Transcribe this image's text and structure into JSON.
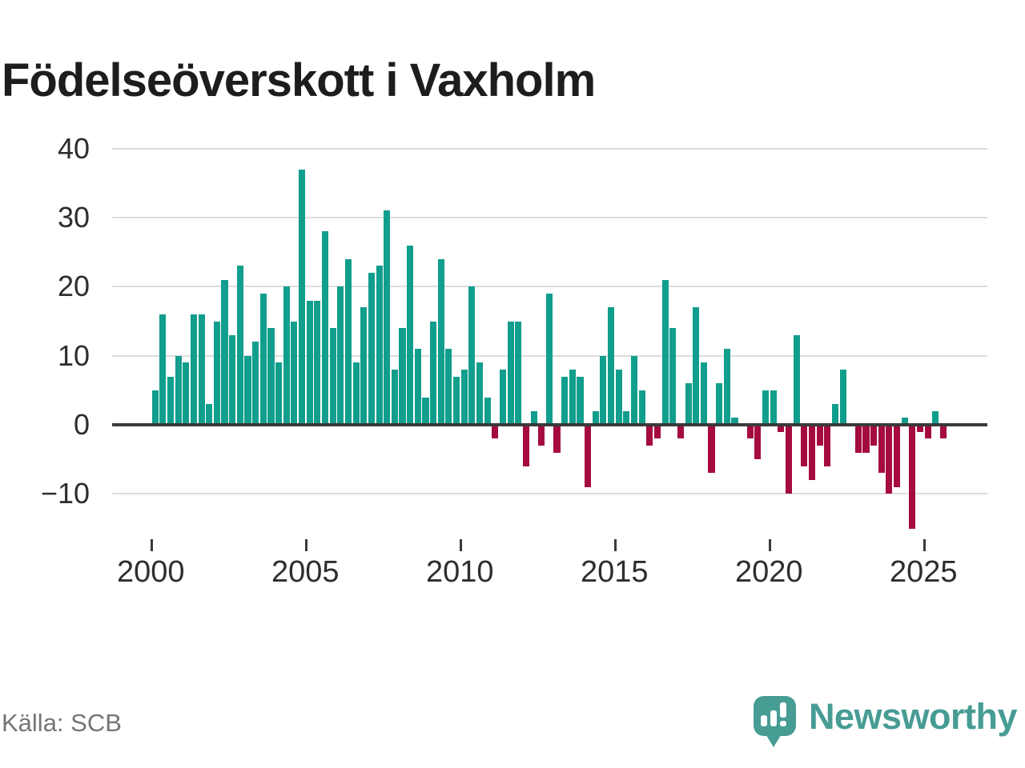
{
  "title": "Födelseöverskott i Vaxholm",
  "source": "Källa: SCB",
  "branding": {
    "name": "Newsworthy",
    "icon": "newsworthy-pin-barchart-icon",
    "color": "#479c94"
  },
  "colors": {
    "positive_bar": "#119e8d",
    "negative_bar": "#a60b3e",
    "axis_line": "#3a3a3a",
    "gridline": "#dddddd",
    "tick_label": "#2e2e2e",
    "title_text": "#1d1d1d",
    "source_text": "#757575",
    "background": "#ffffff"
  },
  "chart_data": {
    "type": "bar",
    "title": "Födelseöverskott i Vaxholm",
    "xlabel": "",
    "ylabel": "",
    "ylim": [
      -17,
      42
    ],
    "yticks": [
      40,
      30,
      20,
      10,
      0,
      -10
    ],
    "ytick_labels": [
      "40",
      "30",
      "20",
      "10",
      "0",
      "−10"
    ],
    "xticks": [
      2000,
      2005,
      2010,
      2015,
      2020,
      2025
    ],
    "xtick_labels": [
      "2000",
      "2005",
      "2010",
      "2015",
      "2020",
      "2025"
    ],
    "grid": true,
    "legend": false,
    "frequency": "quarterly",
    "series_start": "2000Q1",
    "series_end": "2025Q3",
    "years": [
      {
        "year": 2000,
        "values": [
          5,
          16,
          7,
          10
        ]
      },
      {
        "year": 2001,
        "values": [
          9,
          16,
          16,
          3
        ]
      },
      {
        "year": 2002,
        "values": [
          15,
          21,
          13,
          23
        ]
      },
      {
        "year": 2003,
        "values": [
          10,
          12,
          19,
          14
        ]
      },
      {
        "year": 2004,
        "values": [
          9,
          20,
          15,
          37
        ]
      },
      {
        "year": 2005,
        "values": [
          18,
          18,
          28,
          14
        ]
      },
      {
        "year": 2006,
        "values": [
          20,
          24,
          9,
          17
        ]
      },
      {
        "year": 2007,
        "values": [
          22,
          23,
          31,
          8
        ]
      },
      {
        "year": 2008,
        "values": [
          14,
          26,
          11,
          4
        ]
      },
      {
        "year": 2009,
        "values": [
          15,
          24,
          11,
          7
        ]
      },
      {
        "year": 2010,
        "values": [
          8,
          20,
          9,
          4
        ]
      },
      {
        "year": 2011,
        "values": [
          -2,
          8,
          15,
          15
        ]
      },
      {
        "year": 2012,
        "values": [
          -6,
          2,
          -3,
          19
        ]
      },
      {
        "year": 2013,
        "values": [
          -4,
          7,
          8,
          7
        ]
      },
      {
        "year": 2014,
        "values": [
          -9,
          2,
          10,
          17
        ]
      },
      {
        "year": 2015,
        "values": [
          8,
          2,
          10,
          5
        ]
      },
      {
        "year": 2016,
        "values": [
          -3,
          -2,
          21,
          14
        ]
      },
      {
        "year": 2017,
        "values": [
          -2,
          6,
          17,
          9
        ]
      },
      {
        "year": 2018,
        "values": [
          -7,
          6,
          11,
          1
        ]
      },
      {
        "year": 2019,
        "values": [
          0,
          -2,
          -5,
          5
        ]
      },
      {
        "year": 2020,
        "values": [
          5,
          -1,
          -10,
          13
        ]
      },
      {
        "year": 2021,
        "values": [
          -6,
          -8,
          -3,
          -6
        ]
      },
      {
        "year": 2022,
        "values": [
          3,
          8,
          0,
          -4
        ]
      },
      {
        "year": 2023,
        "values": [
          -4,
          -3,
          -7,
          -10
        ]
      },
      {
        "year": 2024,
        "values": [
          -9,
          1,
          -15,
          -1
        ]
      },
      {
        "year": 2025,
        "values": [
          -2,
          2,
          -2
        ]
      }
    ]
  }
}
